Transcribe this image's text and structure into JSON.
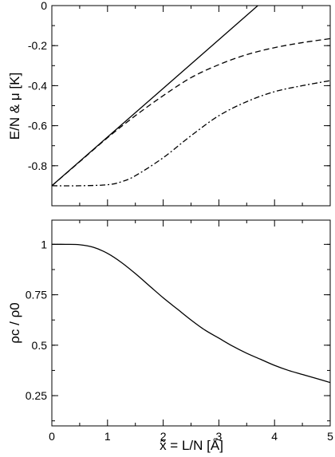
{
  "chart_data": [
    {
      "type": "line",
      "ylabel": "E/N & μ   [K]",
      "xlabel": "",
      "xlim": [
        0,
        5
      ],
      "ylim": [
        -1.0,
        0.0
      ],
      "xticks": [
        0,
        1,
        2,
        3,
        4,
        5
      ],
      "xtick_labels": [
        "",
        "",
        "",
        "",
        "",
        ""
      ],
      "yticks": [
        -0.8,
        -0.6,
        -0.4,
        -0.2,
        0
      ],
      "ytick_labels": [
        "-0.8",
        "-0.6",
        "-0.4",
        "-0.2",
        "0"
      ],
      "series": [
        {
          "style": "solid",
          "x": [
            0,
            3.7
          ],
          "y": [
            -0.9,
            0.0
          ]
        },
        {
          "style": "dashed",
          "x": [
            0,
            0.5,
            1,
            1.5,
            2,
            2.5,
            3,
            3.5,
            4,
            4.5,
            5
          ],
          "y": [
            -0.9,
            -0.78,
            -0.66,
            -0.55,
            -0.45,
            -0.36,
            -0.295,
            -0.245,
            -0.21,
            -0.185,
            -0.165
          ]
        },
        {
          "style": "dashdot",
          "x": [
            0,
            0.5,
            1,
            1.25,
            1.5,
            2,
            2.5,
            3,
            3.5,
            4,
            4.5,
            5
          ],
          "y": [
            -0.9,
            -0.9,
            -0.895,
            -0.88,
            -0.85,
            -0.76,
            -0.65,
            -0.55,
            -0.48,
            -0.43,
            -0.4,
            -0.375
          ]
        }
      ]
    },
    {
      "type": "line",
      "ylabel": "ρc / ρ0",
      "xlabel": "x̃ = L/N  [Å]",
      "xlim": [
        0,
        5
      ],
      "ylim": [
        0.1,
        1.12
      ],
      "xticks": [
        0,
        1,
        2,
        3,
        4,
        5
      ],
      "xtick_labels": [
        "0",
        "1",
        "2",
        "3",
        "4",
        "5"
      ],
      "yticks": [
        0.25,
        0.5,
        0.75,
        1
      ],
      "ytick_labels": [
        "0.25",
        "0.5",
        "0.75",
        "1"
      ],
      "series": [
        {
          "style": "solid",
          "x": [
            0,
            0.25,
            0.5,
            0.75,
            1,
            1.25,
            1.5,
            1.75,
            2,
            2.25,
            2.5,
            2.75,
            3,
            3.25,
            3.5,
            3.75,
            4,
            4.25,
            4.5,
            4.75,
            5
          ],
          "y": [
            1.0,
            1.0,
            0.998,
            0.985,
            0.955,
            0.91,
            0.855,
            0.795,
            0.735,
            0.68,
            0.625,
            0.575,
            0.535,
            0.495,
            0.46,
            0.43,
            0.4,
            0.375,
            0.355,
            0.335,
            0.315
          ]
        }
      ]
    }
  ]
}
